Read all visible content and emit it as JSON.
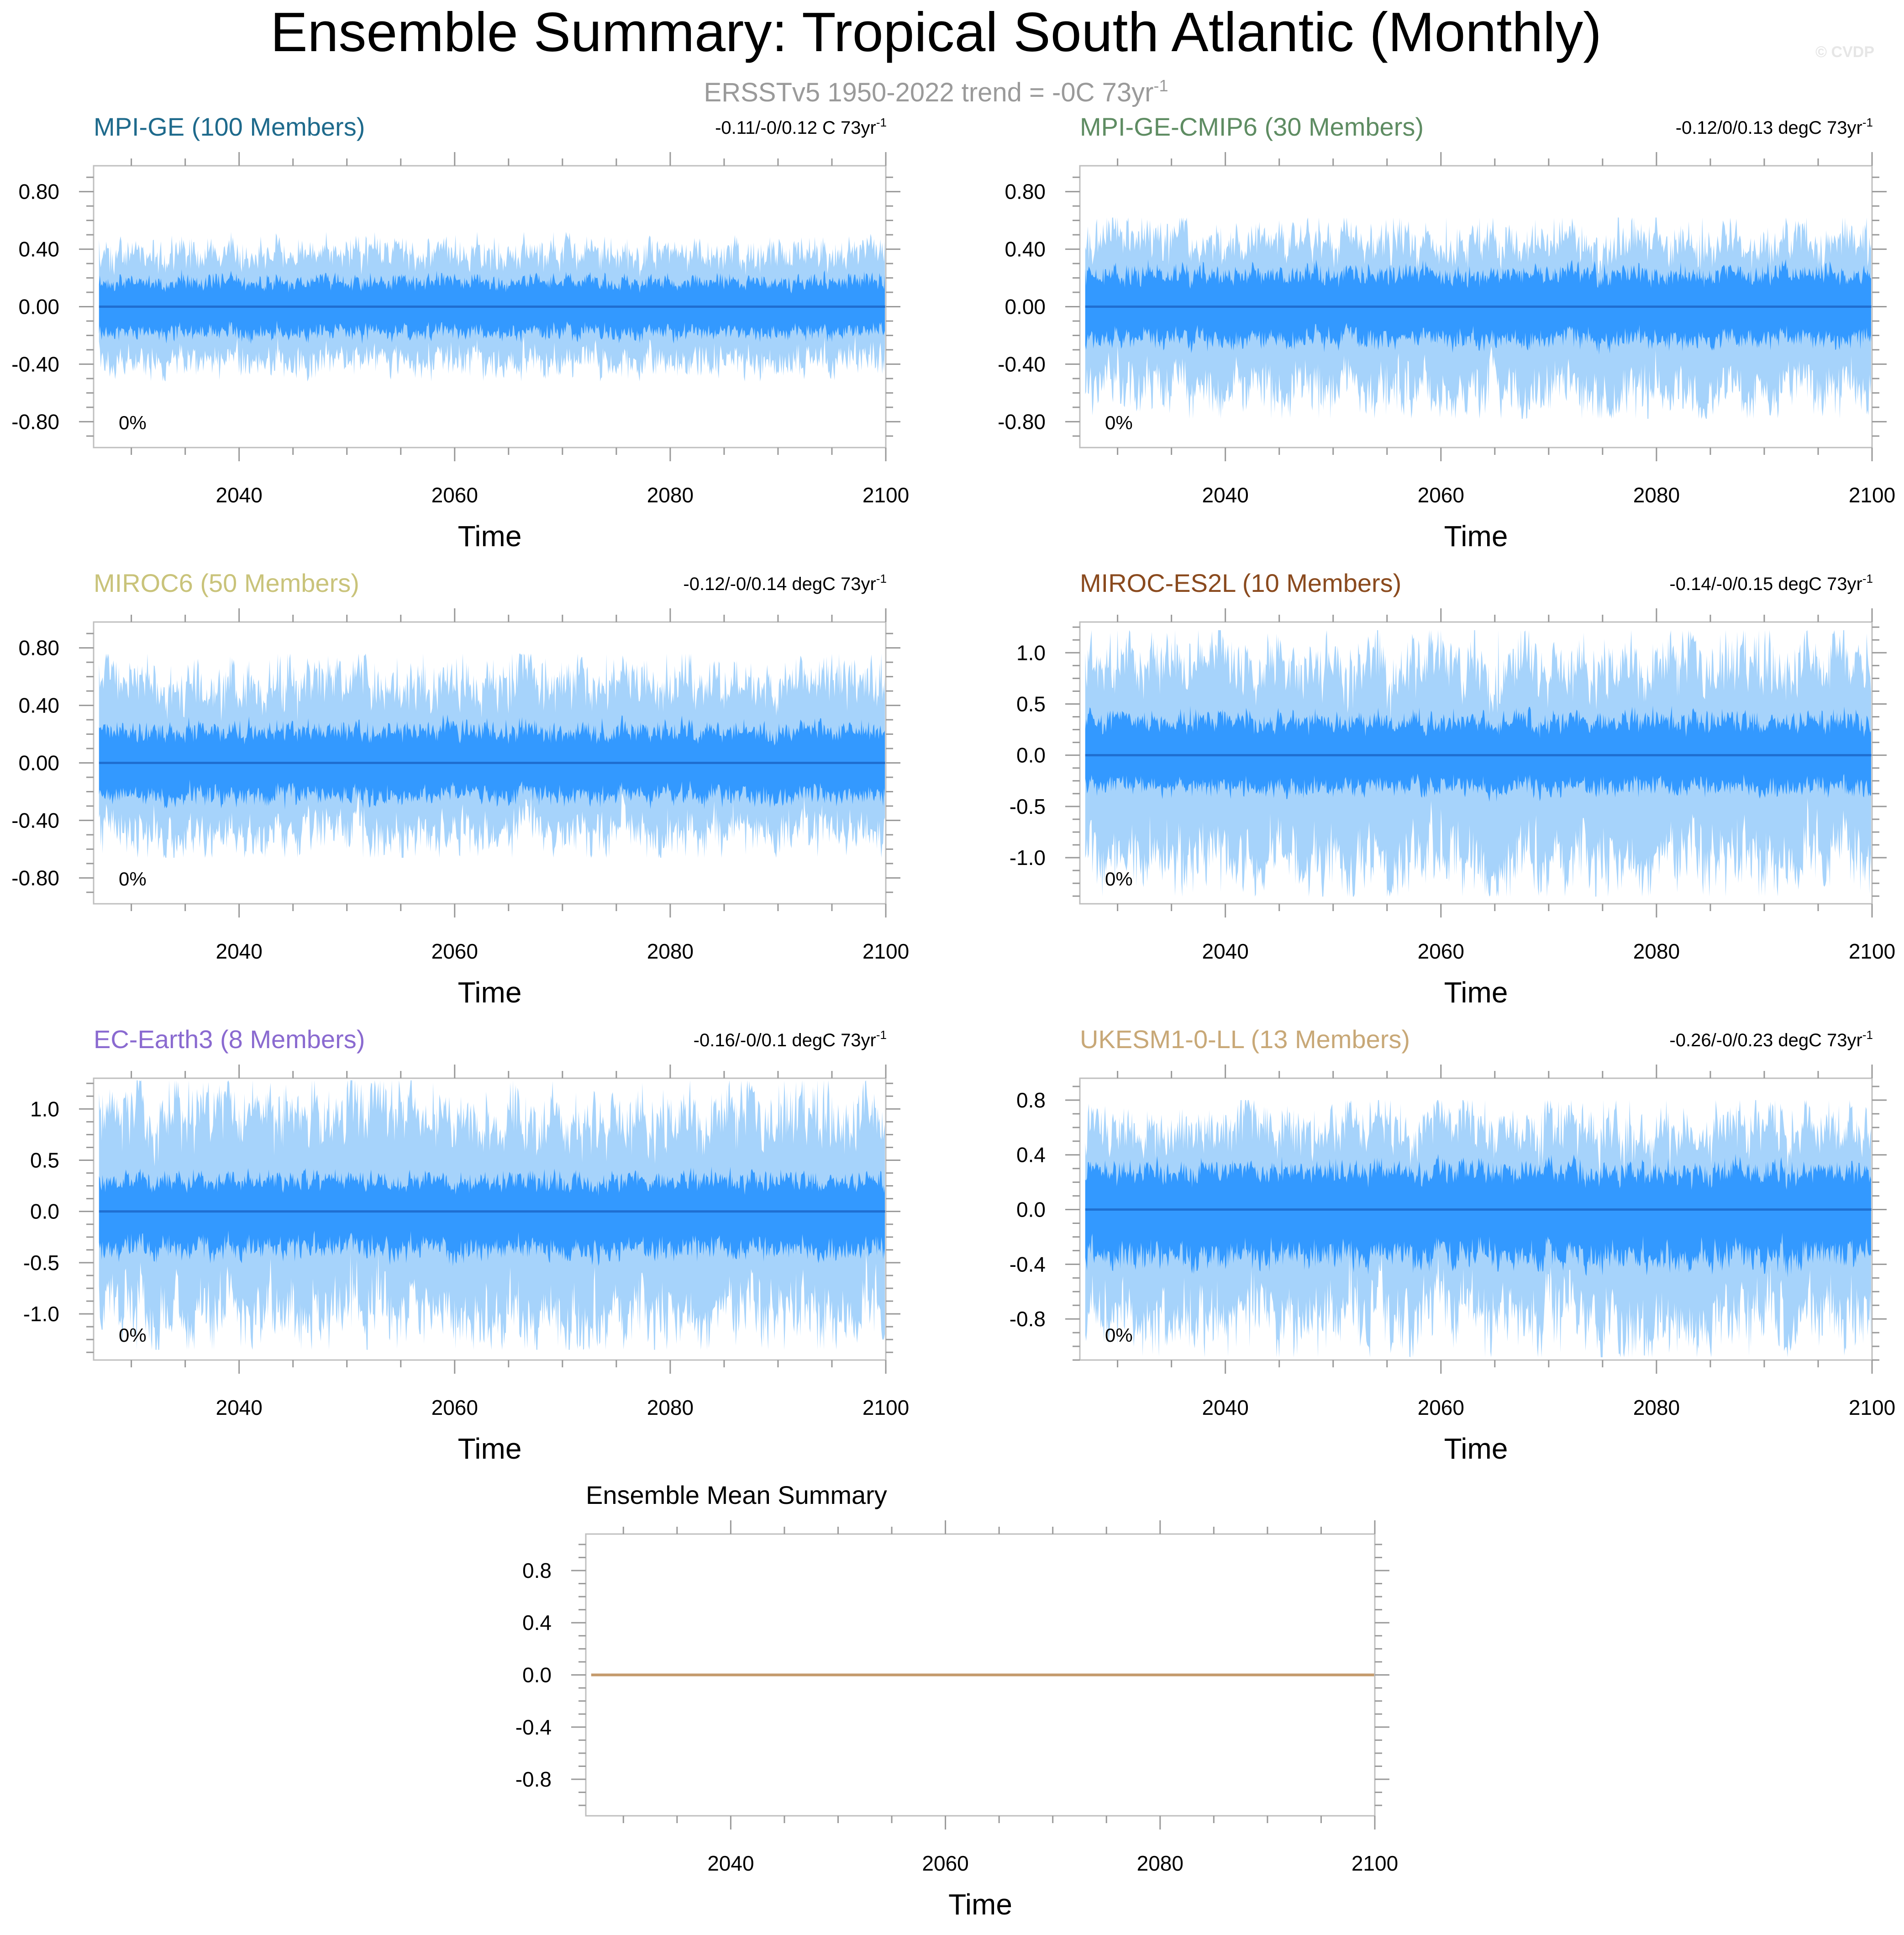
{
  "page": {
    "title": "Ensemble Summary: Tropical South Atlantic (Monthly)",
    "subtitle_main": "ERSSTv5 1950-2022 trend = -0C 73yr",
    "subtitle_sup": "-1",
    "watermark": "© CVDP"
  },
  "colors": {
    "light_band": "#a6d3fb",
    "dark_band": "#3399ff",
    "mean_line": "#1f6fd1",
    "ensemble_mean_line": "#c49a6c",
    "frame": "#bfbfbf",
    "tick": "#999999"
  },
  "chart_data": [
    {
      "type": "area",
      "title": "MPI-GE (100 Members)",
      "title_color": "#1e6a8c",
      "trend_text": "-0.11/-0/0.12 C 73yr",
      "trend_sup": "-1",
      "percent_label": "0%",
      "xlabel": "Time",
      "xlim": [
        2026.5,
        2100
      ],
      "xticks": [
        2040,
        2060,
        2080,
        2100
      ],
      "ylim": [
        -0.98,
        0.98
      ],
      "yticks": [
        0.8,
        0.4,
        0.0,
        -0.4,
        -0.8
      ],
      "ytick_labels": [
        "0.80",
        "0.40",
        "0.00",
        "-0.40",
        "-0.80"
      ],
      "series": [
        {
          "values": {
            "mean": 0.0,
            "inner_range": [
              -0.22,
              0.22
            ],
            "outer_range": [
              -0.52,
              0.52
            ],
            "spike_scale": 0.0
          }
        }
      ],
      "noise_seed": 11
    },
    {
      "type": "area",
      "title": "MPI-GE-CMIP6 (30 Members)",
      "title_color": "#5e8c62",
      "trend_text": "-0.12/0/0.13 degC 73yr",
      "trend_sup": "-1",
      "percent_label": "0%",
      "xlabel": "Time",
      "xlim": [
        2026.5,
        2100
      ],
      "xticks": [
        2040,
        2060,
        2080,
        2100
      ],
      "ylim": [
        -0.98,
        0.98
      ],
      "yticks": [
        0.8,
        0.4,
        0.0,
        -0.4,
        -0.8
      ],
      "ytick_labels": [
        "0.80",
        "0.40",
        "0.00",
        "-0.40",
        "-0.80"
      ],
      "series": [
        {
          "values": {
            "mean": 0.0,
            "inner_range": [
              -0.28,
              0.28
            ],
            "outer_range": [
              -0.78,
              0.62
            ],
            "spike_scale": 0.18
          }
        }
      ],
      "noise_seed": 23
    },
    {
      "type": "area",
      "title": "MIROC6 (50 Members)",
      "title_color": "#c9c37a",
      "trend_text": "-0.12/-0/0.14 degC 73yr",
      "trend_sup": "-1",
      "percent_label": "0%",
      "xlabel": "Time",
      "xlim": [
        2026.5,
        2100
      ],
      "xticks": [
        2040,
        2060,
        2080,
        2100
      ],
      "ylim": [
        -0.98,
        0.98
      ],
      "yticks": [
        0.8,
        0.4,
        0.0,
        -0.4,
        -0.8
      ],
      "ytick_labels": [
        "0.80",
        "0.40",
        "0.00",
        "-0.40",
        "-0.80"
      ],
      "series": [
        {
          "values": {
            "mean": 0.0,
            "inner_range": [
              -0.28,
              0.28
            ],
            "outer_range": [
              -0.66,
              0.76
            ],
            "spike_scale": 0.16
          }
        }
      ],
      "noise_seed": 37
    },
    {
      "type": "area",
      "title": "MIROC-ES2L (10 Members)",
      "title_color": "#8a4a1e",
      "trend_text": "-0.14/-0/0.15 degC 73yr",
      "trend_sup": "-1",
      "percent_label": "0%",
      "xlabel": "Time",
      "xlim": [
        2026.5,
        2100
      ],
      "xticks": [
        2040,
        2060,
        2080,
        2100
      ],
      "ylim": [
        -1.45,
        1.3
      ],
      "yticks": [
        1.0,
        0.5,
        0.0,
        -0.5,
        -1.0
      ],
      "ytick_labels": [
        "1.0",
        "0.5",
        "0.0",
        "-0.5",
        "-1.0"
      ],
      "series": [
        {
          "values": {
            "mean": 0.0,
            "inner_range": [
              -0.38,
              0.42
            ],
            "outer_range": [
              -1.38,
              1.22
            ],
            "spike_scale": 0.35
          }
        }
      ],
      "noise_seed": 41
    },
    {
      "type": "area",
      "title": "EC-Earth3 (8 Members)",
      "title_color": "#8a6ad0",
      "trend_text": "-0.16/-0/0.1 degC 73yr",
      "trend_sup": "-1",
      "percent_label": "0%",
      "xlabel": "Time",
      "xlim": [
        2026.5,
        2100
      ],
      "xticks": [
        2040,
        2060,
        2080,
        2100
      ],
      "ylim": [
        -1.45,
        1.3
      ],
      "yticks": [
        1.0,
        0.5,
        0.0,
        -0.5,
        -1.0
      ],
      "ytick_labels": [
        "1.0",
        "0.5",
        "0.0",
        "-0.5",
        "-1.0"
      ],
      "series": [
        {
          "values": {
            "mean": 0.0,
            "inner_range": [
              -0.45,
              0.38
            ],
            "outer_range": [
              -1.35,
              1.28
            ],
            "spike_scale": 0.32
          }
        }
      ],
      "noise_seed": 53
    },
    {
      "type": "area",
      "title": "UKESM1-0-LL (13 Members)",
      "title_color": "#c8a877",
      "trend_text": "-0.26/-0/0.23 degC 73yr",
      "trend_sup": "-1",
      "percent_label": "0%",
      "xlabel": "Time",
      "xlim": [
        2026.5,
        2100
      ],
      "xticks": [
        2040,
        2060,
        2080,
        2100
      ],
      "ylim": [
        -1.1,
        0.96
      ],
      "yticks": [
        0.8,
        0.4,
        0.0,
        -0.4,
        -0.8
      ],
      "ytick_labels": [
        "0.8",
        "0.4",
        "0.0",
        "-0.4",
        "-0.8"
      ],
      "series": [
        {
          "values": {
            "mean": 0.0,
            "inner_range": [
              -0.42,
              0.35
            ],
            "outer_range": [
              -1.08,
              0.8
            ],
            "spike_scale": 0.22
          }
        }
      ],
      "noise_seed": 67
    },
    {
      "type": "line",
      "title": "Ensemble Mean Summary",
      "title_color": "#000000",
      "trend_text": "",
      "trend_sup": "",
      "percent_label": "",
      "xlabel": "Time",
      "xlim": [
        2026.5,
        2100
      ],
      "xticks": [
        2040,
        2060,
        2080,
        2100
      ],
      "ylim": [
        -1.08,
        1.08
      ],
      "yticks": [
        0.8,
        0.4,
        0.0,
        -0.4,
        -0.8
      ],
      "ytick_labels": [
        "0.8",
        "0.4",
        "0.0",
        "-0.4",
        "-0.8"
      ],
      "series": [
        {
          "values": {
            "mean": 0.0
          }
        }
      ],
      "noise_seed": 0
    }
  ]
}
